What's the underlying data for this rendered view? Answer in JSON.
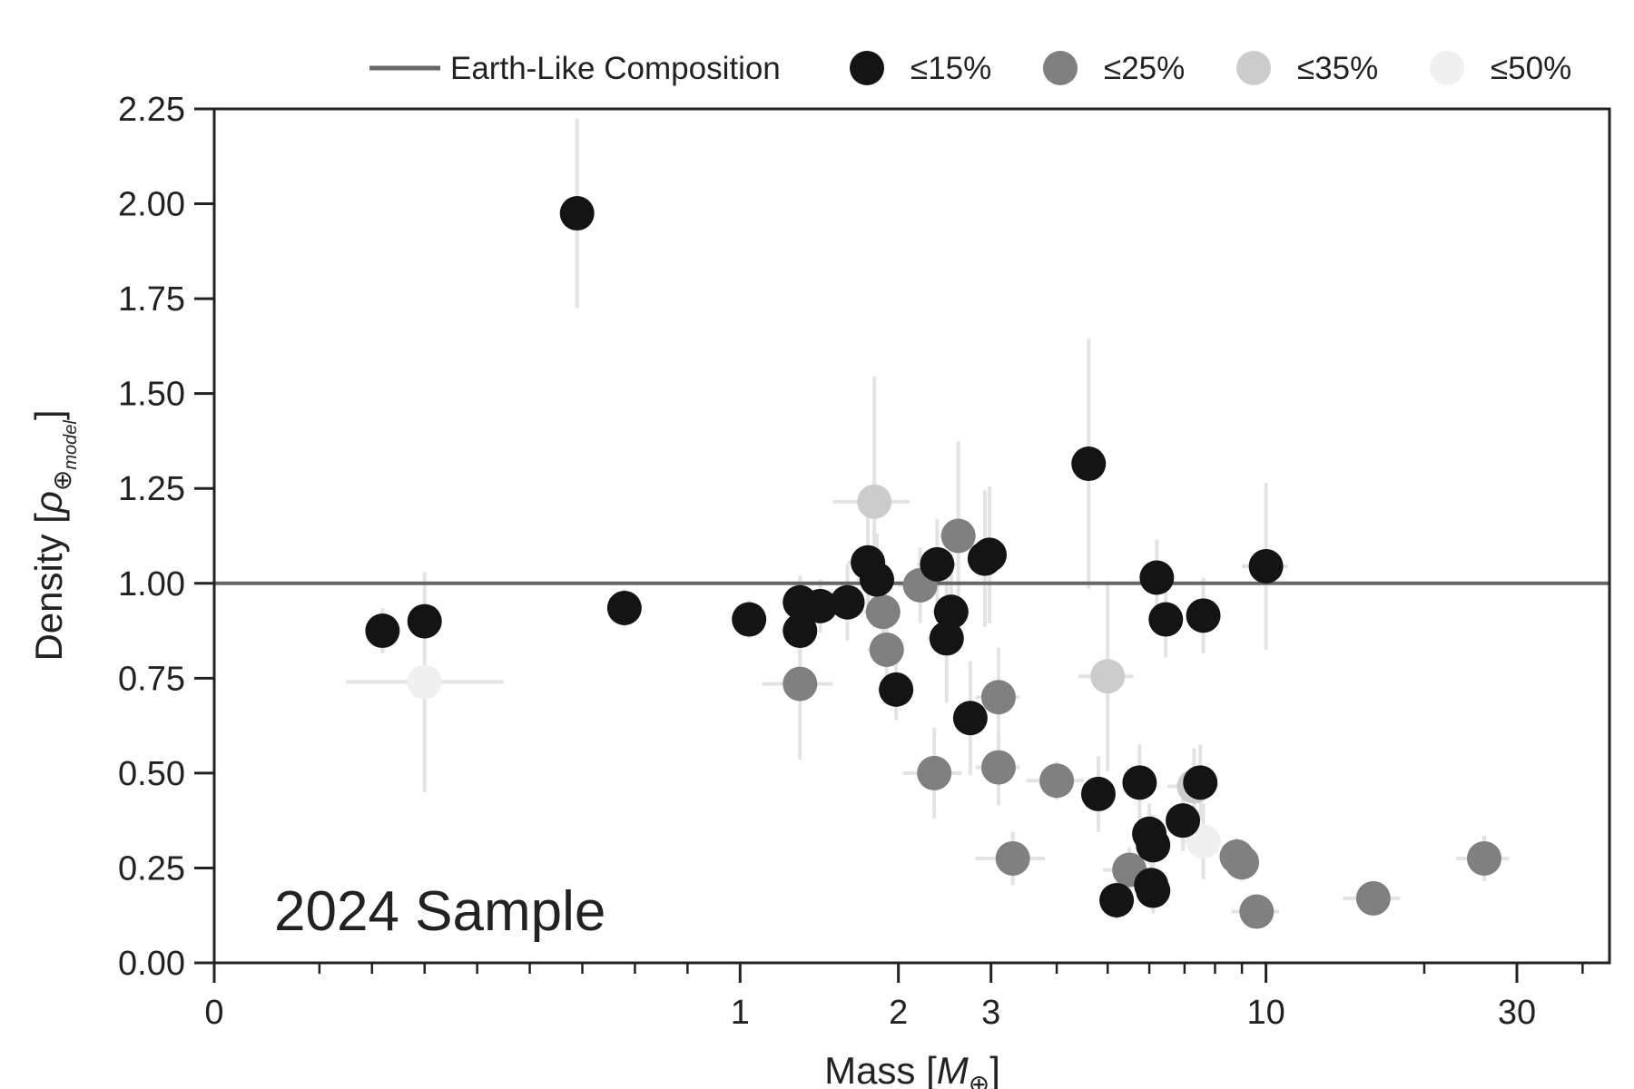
{
  "chart_data": {
    "type": "scatter",
    "xlabel": "Mass [",
    "xlabel_symbol": "M",
    "xlabel_sub": "⊕",
    "xlabel_end": "]",
    "ylabel": "Density [",
    "ylabel_symbol": "ρ",
    "ylabel_sub": "⊕",
    "ylabel_subsub": "model",
    "ylabel_end": "]",
    "annotation": "2024 Sample",
    "x_scale": "symlog",
    "xlim": [
      0,
      45
    ],
    "ylim": [
      0,
      2.25
    ],
    "x_ticks": [
      {
        "value": 0,
        "label": "0"
      },
      {
        "value": 1,
        "label": "1"
      },
      {
        "value": 2,
        "label": "2"
      },
      {
        "value": 3,
        "label": "3"
      },
      {
        "value": 10,
        "label": "10"
      },
      {
        "value": 30,
        "label": "30"
      }
    ],
    "x_minor_ticks": [
      0.2,
      0.3,
      0.4,
      0.5,
      0.6,
      0.7,
      0.8,
      0.9,
      4,
      5,
      6,
      7,
      8,
      9,
      20,
      40
    ],
    "y_ticks": [
      {
        "value": 0,
        "label": "0.00"
      },
      {
        "value": 0.25,
        "label": "0.25"
      },
      {
        "value": 0.5,
        "label": "0.50"
      },
      {
        "value": 0.75,
        "label": "0.75"
      },
      {
        "value": 1,
        "label": "1.00"
      },
      {
        "value": 1.25,
        "label": "1.25"
      },
      {
        "value": 1.5,
        "label": "1.50"
      },
      {
        "value": 1.75,
        "label": "1.75"
      },
      {
        "value": 2,
        "label": "2.00"
      },
      {
        "value": 2.25,
        "label": "2.25"
      }
    ],
    "grid": false,
    "legend_position": "top",
    "reference_line": {
      "label": "Earth-Like Composition",
      "y": 1.0,
      "color": "#666666"
    },
    "errorbar_color": "#e3e3e3",
    "series": [
      {
        "name": "≤15%",
        "color": "#141414",
        "points": [
          {
            "x": 0.69,
            "y": 1.975,
            "xerr": 0.02,
            "yerr": 0.25
          },
          {
            "x": 0.32,
            "y": 0.875,
            "xerr": 0.02,
            "yerr": 0.06
          },
          {
            "x": 0.4,
            "y": 0.9,
            "xerr": 0.02,
            "yerr": 0.05
          },
          {
            "x": 0.78,
            "y": 0.935,
            "xerr": 0.02,
            "yerr": 0.05
          },
          {
            "x": 1.04,
            "y": 0.905,
            "xerr": 0.05,
            "yerr": 0.05
          },
          {
            "x": 1.3,
            "y": 0.95,
            "xerr": 0.1,
            "yerr": 0.07
          },
          {
            "x": 1.3,
            "y": 0.875,
            "xerr": 0.1,
            "yerr": 0.07
          },
          {
            "x": 1.42,
            "y": 0.94,
            "xerr": 0.1,
            "yerr": 0.07
          },
          {
            "x": 1.6,
            "y": 0.95,
            "xerr": 0.12,
            "yerr": 0.1
          },
          {
            "x": 1.75,
            "y": 1.055,
            "xerr": 0.15,
            "yerr": 0.15
          },
          {
            "x": 1.82,
            "y": 1.01,
            "xerr": 0.15,
            "yerr": 0.12
          },
          {
            "x": 1.98,
            "y": 0.72,
            "xerr": 0.15,
            "yerr": 0.08
          },
          {
            "x": 2.37,
            "y": 1.05,
            "xerr": 0.2,
            "yerr": 0.12
          },
          {
            "x": 2.52,
            "y": 0.925,
            "xerr": 0.2,
            "yerr": 0.1
          },
          {
            "x": 2.47,
            "y": 0.855,
            "xerr": 0.2,
            "yerr": 0.17
          },
          {
            "x": 2.92,
            "y": 1.065,
            "xerr": 0.2,
            "yerr": 0.18
          },
          {
            "x": 2.98,
            "y": 1.075,
            "xerr": 0.2,
            "yerr": 0.18
          },
          {
            "x": 2.74,
            "y": 0.645,
            "xerr": 0.2,
            "yerr": 0.15
          },
          {
            "x": 4.6,
            "y": 1.315,
            "xerr": 0.2,
            "yerr": 0.33
          },
          {
            "x": 4.8,
            "y": 0.445,
            "xerr": 0.3,
            "yerr": 0.1
          },
          {
            "x": 5.2,
            "y": 0.165,
            "xerr": 0.3,
            "yerr": 0.05
          },
          {
            "x": 5.75,
            "y": 0.475,
            "xerr": 0.3,
            "yerr": 0.1
          },
          {
            "x": 6.2,
            "y": 1.015,
            "xerr": 0.3,
            "yerr": 0.1
          },
          {
            "x": 6.45,
            "y": 0.905,
            "xerr": 0.3,
            "yerr": 0.1
          },
          {
            "x": 6.0,
            "y": 0.34,
            "xerr": 0.3,
            "yerr": 0.08
          },
          {
            "x": 6.1,
            "y": 0.31,
            "xerr": 0.3,
            "yerr": 0.08
          },
          {
            "x": 6.05,
            "y": 0.205,
            "xerr": 0.3,
            "yerr": 0.06
          },
          {
            "x": 6.1,
            "y": 0.19,
            "xerr": 0.3,
            "yerr": 0.06
          },
          {
            "x": 6.95,
            "y": 0.375,
            "xerr": 0.4,
            "yerr": 0.08
          },
          {
            "x": 7.5,
            "y": 0.475,
            "xerr": 0.4,
            "yerr": 0.1
          },
          {
            "x": 7.6,
            "y": 0.915,
            "xerr": 0.4,
            "yerr": 0.1
          },
          {
            "x": 10.0,
            "y": 1.045,
            "xerr": 1.0,
            "yerr": 0.22
          }
        ]
      },
      {
        "name": "≤25%",
        "color": "#808080",
        "points": [
          {
            "x": 1.3,
            "y": 0.735,
            "xerr": 0.2,
            "yerr": 0.2
          },
          {
            "x": 1.87,
            "y": 0.925,
            "xerr": 0.15,
            "yerr": 0.1
          },
          {
            "x": 1.9,
            "y": 0.825,
            "xerr": 0.15,
            "yerr": 0.1
          },
          {
            "x": 2.2,
            "y": 0.995,
            "xerr": 0.2,
            "yerr": 0.1
          },
          {
            "x": 2.6,
            "y": 1.125,
            "xerr": 0.2,
            "yerr": 0.25
          },
          {
            "x": 2.34,
            "y": 0.5,
            "xerr": 0.3,
            "yerr": 0.12
          },
          {
            "x": 3.1,
            "y": 0.7,
            "xerr": 0.3,
            "yerr": 0.13
          },
          {
            "x": 3.1,
            "y": 0.515,
            "xerr": 0.3,
            "yerr": 0.1
          },
          {
            "x": 3.3,
            "y": 0.275,
            "xerr": 0.5,
            "yerr": 0.07
          },
          {
            "x": 4.0,
            "y": 0.48,
            "xerr": 0.5,
            "yerr": 0.05
          },
          {
            "x": 5.5,
            "y": 0.245,
            "xerr": 0.6,
            "yerr": 0.06
          },
          {
            "x": 8.8,
            "y": 0.28,
            "xerr": 0.6,
            "yerr": 0.05
          },
          {
            "x": 9.0,
            "y": 0.265,
            "xerr": 0.6,
            "yerr": 0.05
          },
          {
            "x": 9.6,
            "y": 0.135,
            "xerr": 1.0,
            "yerr": 0.04
          },
          {
            "x": 16.0,
            "y": 0.17,
            "xerr": 2.0,
            "yerr": 0.04
          },
          {
            "x": 26.0,
            "y": 0.275,
            "xerr": 3.0,
            "yerr": 0.06
          }
        ]
      },
      {
        "name": "≤35%",
        "color": "#cccccc",
        "points": [
          {
            "x": 1.8,
            "y": 1.215,
            "xerr": 0.3,
            "yerr": 0.33
          },
          {
            "x": 5.0,
            "y": 0.755,
            "xerr": 0.6,
            "yerr": 0.25
          },
          {
            "x": 7.3,
            "y": 0.465,
            "xerr": 0.8,
            "yerr": 0.1
          }
        ]
      },
      {
        "name": "≤50%",
        "color": "#f0f0f0",
        "points": [
          {
            "x": 0.4,
            "y": 0.74,
            "xerr": 0.15,
            "yerr": 0.29
          },
          {
            "x": 7.6,
            "y": 0.32,
            "xerr": 0.6,
            "yerr": 0.1
          }
        ]
      }
    ]
  }
}
